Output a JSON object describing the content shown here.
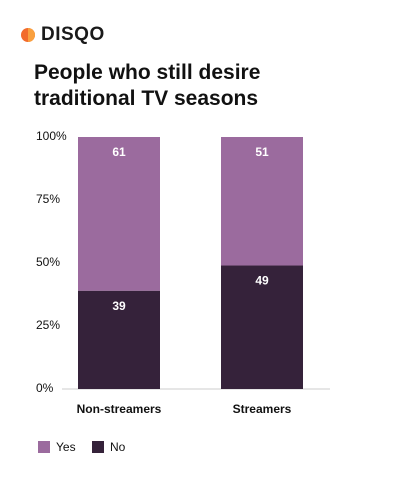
{
  "brand": "DISQO",
  "chart_data": {
    "type": "stacked_bar",
    "title": "People who still desire traditional TV seasons",
    "categories": [
      "Non-streamers",
      "Streamers"
    ],
    "series": [
      {
        "name": "Yes",
        "color": "#9b6b9e",
        "values": [
          61,
          51
        ]
      },
      {
        "name": "No",
        "color": "#35223a",
        "values": [
          39,
          49
        ]
      }
    ],
    "ylim": [
      0,
      100
    ],
    "yticks": [
      {
        "value": 0,
        "label": "0%"
      },
      {
        "value": 25,
        "label": "25%"
      },
      {
        "value": 50,
        "label": "50%"
      },
      {
        "value": 75,
        "label": "75%"
      },
      {
        "value": 100,
        "label": "100%"
      }
    ],
    "legend": "bottom-left"
  }
}
